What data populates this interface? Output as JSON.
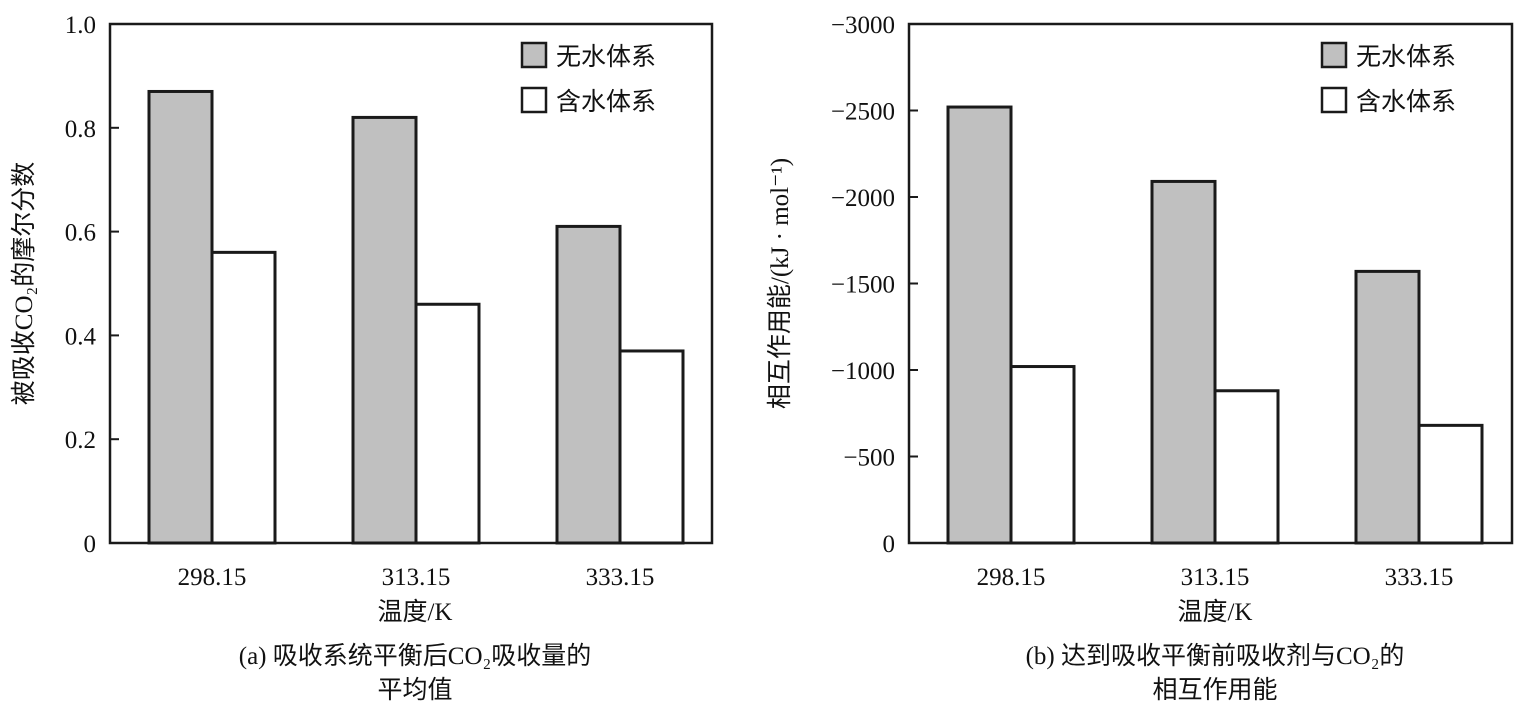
{
  "chart_data": [
    {
      "type": "bar",
      "categories": [
        "298.15",
        "313.15",
        "333.15"
      ],
      "series": [
        {
          "name": "无水体系",
          "values": [
            0.87,
            0.82,
            0.61
          ],
          "color": "#c0c0c0"
        },
        {
          "name": "含水体系",
          "values": [
            0.56,
            0.46,
            0.37
          ],
          "color": "#ffffff"
        }
      ],
      "xlabel": "温度/K",
      "ylabel": "被吸收CO₂的摩尔分数",
      "ylim": [
        0,
        1.0
      ],
      "yticks": [
        0,
        0.2,
        0.4,
        0.6,
        0.8,
        1.0
      ],
      "ytick_labels": [
        "0",
        "0.2",
        "0.4",
        "0.6",
        "0.8",
        "1.0"
      ],
      "caption_line1": "(a) 吸收系统平衡后CO₂吸收量的",
      "caption_line2": "平均值",
      "legend": "top-right",
      "grid": false
    },
    {
      "type": "bar",
      "categories": [
        "298.15",
        "313.15",
        "333.15"
      ],
      "series": [
        {
          "name": "无水体系",
          "values": [
            -2520,
            -2090,
            -1570
          ],
          "color": "#c0c0c0"
        },
        {
          "name": "含水体系",
          "values": [
            -1020,
            -880,
            -680
          ],
          "color": "#ffffff"
        }
      ],
      "xlabel": "温度/K",
      "ylabel": "相互作用能/(kJ · mol⁻¹)",
      "ylim": [
        0,
        -3000
      ],
      "yticks": [
        0,
        -500,
        -1000,
        -1500,
        -2000,
        -2500,
        -3000
      ],
      "ytick_labels": [
        "0",
        "−500",
        "−1000",
        "−1500",
        "−2000",
        "−2500",
        "−3000"
      ],
      "caption_line1": "(b) 达到吸收平衡前吸收剂与CO₂的",
      "caption_line2": "相互作用能",
      "legend": "top-right",
      "grid": false
    }
  ]
}
